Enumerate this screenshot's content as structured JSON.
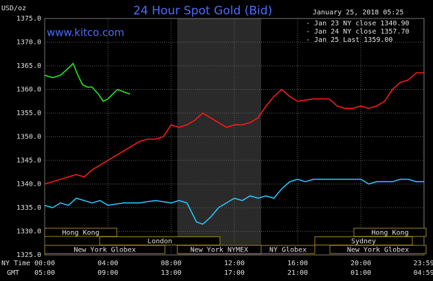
{
  "chart_data": {
    "type": "line",
    "title": "24 Hour Spot Gold (Bid)",
    "website": "www.kitco.com",
    "y_label": "USD/oz",
    "timestamp": "January 25, 2018 05:25",
    "row_labels": [
      "NY Time",
      "GMT"
    ],
    "xlim": [
      0,
      24
    ],
    "ylim": [
      1325,
      1375
    ],
    "xticks": [
      {
        "value": 0,
        "label": "00:00"
      },
      {
        "value": 4,
        "label": "04:00"
      },
      {
        "value": 8,
        "label": "08:00"
      },
      {
        "value": 12,
        "label": "12:00"
      },
      {
        "value": 16,
        "label": "16:00"
      },
      {
        "value": 20,
        "label": "20:00"
      },
      {
        "value": 23.98,
        "label": "23:59"
      }
    ],
    "gmt_labels": [
      "05:00",
      "09:00",
      "13:00",
      "17:00",
      "21:00",
      "01:00",
      "04:59"
    ],
    "yticks": [
      {
        "value": 1325,
        "label": "1325.0"
      },
      {
        "value": 1330,
        "label": "1330.0"
      },
      {
        "value": 1335,
        "label": "1335.0"
      },
      {
        "value": 1340,
        "label": "1340.0"
      },
      {
        "value": 1345,
        "label": "1345.0"
      },
      {
        "value": 1350,
        "label": "1350.0"
      },
      {
        "value": 1355,
        "label": "1355.0"
      },
      {
        "value": 1360,
        "label": "1360.0"
      },
      {
        "value": 1365,
        "label": "1365.0"
      },
      {
        "value": 1370,
        "label": "1370.0"
      },
      {
        "value": 1375,
        "label": "1375.0"
      }
    ],
    "grid": true,
    "sessions": [
      "Hong Kong",
      "Hong Kong",
      "London",
      "Sydney",
      "New York Globex",
      "New York NYMEX",
      "NY Globex",
      "New York Globex"
    ],
    "series": [
      {
        "name": "- Jan 23 NY close 1340.90",
        "color": "#22c8ff",
        "x": [
          0,
          0.5,
          1,
          1.5,
          2,
          2.5,
          3,
          3.5,
          4,
          5,
          6,
          7,
          8,
          8.5,
          9,
          9.3,
          9.6,
          10,
          10.5,
          11,
          11.5,
          12,
          12.5,
          13,
          13.5,
          14,
          14.5,
          15,
          15.5,
          16,
          16.5,
          17,
          18,
          19,
          20,
          20.5,
          21,
          22,
          22.5,
          23,
          23.5,
          24
        ],
        "values": [
          1335.5,
          1335,
          1336,
          1335.5,
          1337,
          1336.5,
          1336,
          1336.5,
          1335.5,
          1336,
          1336,
          1336.5,
          1336,
          1336.5,
          1336,
          1334,
          1332,
          1331.5,
          1333,
          1335,
          1336,
          1337,
          1336.5,
          1337.5,
          1337,
          1337.5,
          1337,
          1339,
          1340.5,
          1341,
          1340.5,
          1341,
          1341,
          1341,
          1341,
          1340,
          1340.5,
          1340.5,
          1341,
          1341,
          1340.5,
          1340.5
        ]
      },
      {
        "name": "- Jan 24 NY close 1357.70",
        "color": "#ff1a1a",
        "x": [
          0,
          0.5,
          1,
          1.5,
          2,
          2.5,
          3,
          3.5,
          4,
          4.5,
          5,
          5.5,
          6,
          6.5,
          7,
          7.5,
          8,
          8.5,
          9,
          9.5,
          10,
          10.5,
          11,
          11.5,
          12,
          12.5,
          13,
          13.5,
          14,
          14.5,
          15,
          15.5,
          16,
          17,
          18,
          18.5,
          19,
          19.5,
          20,
          20.5,
          21,
          21.5,
          22,
          22.5,
          23,
          23.5,
          24
        ],
        "values": [
          1340,
          1340.5,
          1341,
          1341.5,
          1342,
          1341.5,
          1343,
          1344,
          1345,
          1346,
          1347,
          1348,
          1349,
          1349.5,
          1349.5,
          1350,
          1352.5,
          1352,
          1352.5,
          1353.5,
          1355,
          1354,
          1353,
          1352,
          1352.5,
          1352.5,
          1353,
          1354,
          1356.5,
          1358.5,
          1360,
          1358.5,
          1357.5,
          1358,
          1358,
          1356.5,
          1356,
          1356,
          1356.5,
          1356,
          1356.5,
          1357.5,
          1360,
          1361.5,
          1362,
          1363.5,
          1363.5
        ]
      },
      {
        "name": "- Jan 25 Last 1359.00",
        "color": "#22ee22",
        "x": [
          0,
          0.5,
          1,
          1.5,
          1.8,
          2.1,
          2.4,
          2.7,
          3,
          3.4,
          3.7,
          4,
          4.3,
          4.6,
          5,
          5.4
        ],
        "values": [
          1363,
          1362.5,
          1363,
          1364.5,
          1365.5,
          1363,
          1361,
          1360.5,
          1360.5,
          1359,
          1357.5,
          1358,
          1359,
          1360,
          1359.5,
          1359
        ]
      }
    ]
  }
}
